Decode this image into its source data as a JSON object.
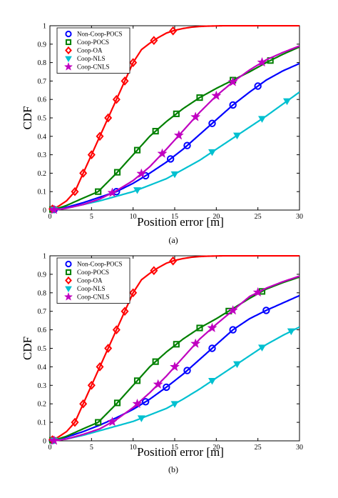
{
  "figure": {
    "panels": [
      "(a)",
      "(b)"
    ]
  },
  "chart_data": [
    {
      "type": "line",
      "caption": "(a)",
      "xlabel": "Position error [m]",
      "ylabel": "CDF",
      "xlim": [
        0,
        30
      ],
      "ylim": [
        0,
        1
      ],
      "xticks": [
        0,
        5,
        10,
        15,
        20,
        25,
        30
      ],
      "yticks": [
        0,
        0.1,
        0.2,
        0.3,
        0.4,
        0.5,
        0.6,
        0.7,
        0.8,
        0.9,
        1
      ],
      "grid": false,
      "legend_position": "top-left",
      "series": [
        {
          "name": "Non-Coop-POCS",
          "color": "#0000ff",
          "marker": "circle",
          "x": [
            0,
            1,
            2,
            4,
            6,
            8,
            10,
            12,
            14,
            16,
            18,
            20,
            22,
            24,
            26,
            28,
            30
          ],
          "y": [
            0,
            0.005,
            0.015,
            0.04,
            0.07,
            0.1,
            0.145,
            0.2,
            0.26,
            0.33,
            0.41,
            0.49,
            0.57,
            0.64,
            0.705,
            0.755,
            0.795
          ],
          "marked_x": [
            0.5,
            8,
            11.5,
            14.5,
            16.5,
            19.5,
            22,
            25
          ]
        },
        {
          "name": "Coop-POCS",
          "color": "#008000",
          "marker": "square",
          "x": [
            0,
            1,
            2,
            4,
            5.8,
            8,
            10,
            12,
            14,
            16,
            18,
            20,
            22,
            24,
            26,
            28,
            30
          ],
          "y": [
            0,
            0.01,
            0.025,
            0.065,
            0.1,
            0.2,
            0.3,
            0.4,
            0.48,
            0.55,
            0.61,
            0.66,
            0.705,
            0.75,
            0.8,
            0.845,
            0.885
          ],
          "marked_x": [
            0.3,
            5.8,
            8.1,
            10.5,
            12.7,
            15.2,
            18,
            22,
            26.5
          ]
        },
        {
          "name": "Coop-OA",
          "color": "#ff0000",
          "marker": "diamond",
          "x": [
            0,
            1,
            2,
            3,
            4,
            5,
            6,
            7,
            8,
            9,
            10,
            11,
            12,
            13,
            14,
            15,
            16,
            17,
            18,
            19,
            20,
            21,
            22,
            30
          ],
          "y": [
            0,
            0.02,
            0.05,
            0.1,
            0.2,
            0.3,
            0.4,
            0.5,
            0.6,
            0.7,
            0.8,
            0.87,
            0.905,
            0.935,
            0.96,
            0.975,
            0.985,
            0.992,
            0.996,
            0.998,
            0.999,
            1,
            1,
            1
          ],
          "marked_x": [
            0.3,
            3,
            4,
            5,
            6,
            7,
            8,
            9,
            10,
            12.5,
            14.8
          ]
        },
        {
          "name": "Coop-NLS",
          "color": "#00c0d0",
          "marker": "triangle",
          "x": [
            0,
            1,
            2,
            4,
            6,
            8,
            10,
            12,
            14,
            16,
            18,
            20,
            22,
            24,
            26,
            28,
            30
          ],
          "y": [
            0,
            0.005,
            0.01,
            0.03,
            0.05,
            0.075,
            0.1,
            0.135,
            0.17,
            0.22,
            0.27,
            0.33,
            0.39,
            0.45,
            0.51,
            0.575,
            0.64
          ],
          "marked_x": [
            0.5,
            10.5,
            15,
            19.5,
            22.5,
            25.5,
            28.5
          ]
        },
        {
          "name": "Coop-CNLS",
          "color": "#c000c0",
          "marker": "star",
          "x": [
            0,
            1,
            2,
            4,
            6,
            8,
            10,
            12,
            14,
            16,
            18,
            20,
            22,
            24,
            26,
            28,
            30
          ],
          "y": [
            0,
            0.003,
            0.01,
            0.03,
            0.06,
            0.105,
            0.16,
            0.235,
            0.33,
            0.43,
            0.53,
            0.62,
            0.695,
            0.76,
            0.815,
            0.855,
            0.89
          ],
          "marked_x": [
            0.5,
            7.5,
            11,
            13.5,
            15.5,
            17.5,
            20,
            22,
            25.5
          ]
        }
      ]
    },
    {
      "type": "line",
      "caption": "(b)",
      "xlabel": "Position error [m]",
      "ylabel": "CDF",
      "xlim": [
        0,
        30
      ],
      "ylim": [
        0,
        1
      ],
      "xticks": [
        0,
        5,
        10,
        15,
        20,
        25,
        30
      ],
      "yticks": [
        0,
        0.1,
        0.2,
        0.3,
        0.4,
        0.5,
        0.6,
        0.7,
        0.8,
        0.9,
        1
      ],
      "grid": false,
      "legend_position": "top-left",
      "series": [
        {
          "name": "Non-Coop-POCS",
          "color": "#0000ff",
          "marker": "circle",
          "x": [
            0,
            1,
            2,
            4,
            6,
            8,
            10,
            12,
            14,
            16,
            18,
            20,
            22,
            24,
            26,
            28,
            30
          ],
          "y": [
            0,
            0.008,
            0.02,
            0.05,
            0.085,
            0.125,
            0.17,
            0.225,
            0.29,
            0.36,
            0.44,
            0.52,
            0.6,
            0.66,
            0.705,
            0.745,
            0.785
          ],
          "marked_x": [
            0.3,
            11.5,
            14,
            16.5,
            19.5,
            22,
            26
          ]
        },
        {
          "name": "Coop-POCS",
          "color": "#008000",
          "marker": "square",
          "x": [
            0,
            1,
            2,
            4,
            5.8,
            8,
            10,
            12,
            14,
            16,
            18,
            20,
            22,
            24,
            26,
            28,
            30
          ],
          "y": [
            0,
            0.01,
            0.025,
            0.065,
            0.1,
            0.2,
            0.3,
            0.4,
            0.48,
            0.55,
            0.61,
            0.66,
            0.715,
            0.77,
            0.82,
            0.855,
            0.885
          ],
          "marked_x": [
            0.3,
            5.8,
            8.1,
            10.5,
            12.7,
            15.2,
            18,
            21.5,
            25.5
          ]
        },
        {
          "name": "Coop-OA",
          "color": "#ff0000",
          "marker": "diamond",
          "x": [
            0,
            1,
            2,
            3,
            4,
            5,
            6,
            7,
            8,
            9,
            10,
            11,
            12,
            13,
            14,
            15,
            16,
            17,
            18,
            19,
            20,
            21,
            22,
            30
          ],
          "y": [
            0,
            0.02,
            0.05,
            0.1,
            0.2,
            0.3,
            0.4,
            0.5,
            0.6,
            0.7,
            0.8,
            0.87,
            0.905,
            0.935,
            0.96,
            0.975,
            0.985,
            0.992,
            0.996,
            0.998,
            0.999,
            1,
            1,
            1
          ],
          "marked_x": [
            0.3,
            3,
            4,
            5,
            6,
            7,
            8,
            9,
            10,
            12.5,
            14.8
          ]
        },
        {
          "name": "Coop-NLS",
          "color": "#00c0d0",
          "marker": "triangle",
          "x": [
            0,
            1,
            2,
            4,
            6,
            8,
            10,
            12,
            14,
            16,
            18,
            20,
            22,
            24,
            26,
            28,
            30
          ],
          "y": [
            0,
            0.005,
            0.01,
            0.03,
            0.055,
            0.08,
            0.105,
            0.14,
            0.175,
            0.225,
            0.28,
            0.34,
            0.4,
            0.46,
            0.52,
            0.57,
            0.615
          ],
          "marked_x": [
            0.5,
            11,
            15,
            19.5,
            22.5,
            25.5,
            29
          ]
        },
        {
          "name": "Coop-CNLS",
          "color": "#c000c0",
          "marker": "star",
          "x": [
            0,
            1,
            2,
            4,
            6,
            8,
            10,
            12,
            14,
            16,
            18,
            20,
            22,
            24,
            26,
            28,
            30
          ],
          "y": [
            0,
            0.003,
            0.01,
            0.035,
            0.065,
            0.115,
            0.18,
            0.26,
            0.35,
            0.45,
            0.55,
            0.63,
            0.705,
            0.78,
            0.825,
            0.86,
            0.89
          ],
          "marked_x": [
            0.5,
            7.5,
            10.5,
            13,
            15,
            17.5,
            19.5,
            22,
            25
          ]
        }
      ]
    }
  ]
}
